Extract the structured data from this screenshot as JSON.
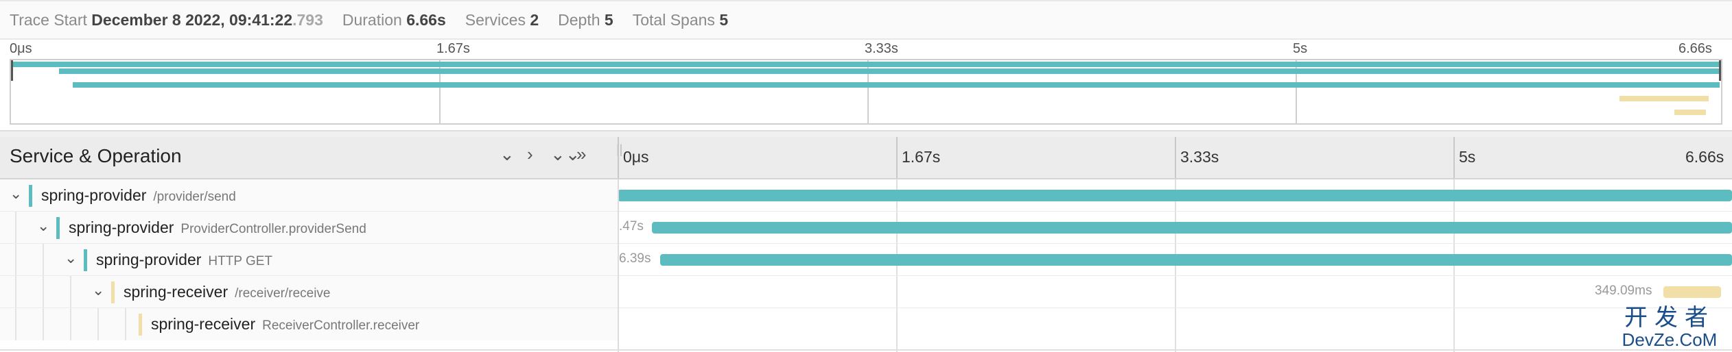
{
  "summary": {
    "trace_start_label": "Trace Start",
    "trace_start_value": "December 8 2022, 09:41:22",
    "trace_start_ms": ".793",
    "duration_label": "Duration",
    "duration_value": "6.66s",
    "services_label": "Services",
    "services_value": "2",
    "depth_label": "Depth",
    "depth_value": "5",
    "total_spans_label": "Total Spans",
    "total_spans_value": "5"
  },
  "minimap": {
    "ticks": [
      "0μs",
      "1.67s",
      "3.33s",
      "5s",
      "6.66s"
    ]
  },
  "header": {
    "title": "Service & Operation",
    "timeline_ticks": [
      "0μs",
      "1.67s",
      "3.33s",
      "5s",
      "6.66s"
    ]
  },
  "colors": {
    "provider": "#5dbcbf",
    "receiver": "#f2dfa7"
  },
  "icons": {
    "collapse_one": "chevron-down-icon",
    "expand_one": "chevron-right-icon",
    "collapse_all": "double-chevron-down-icon",
    "expand_all": "double-chevron-right-icon"
  },
  "spans": [
    {
      "service": "spring-provider",
      "operation": "/provider/send",
      "label": "",
      "depth": 0
    },
    {
      "service": "spring-provider",
      "operation": "ProviderController.providerSend",
      "label": ".47s",
      "depth": 1
    },
    {
      "service": "spring-provider",
      "operation": "HTTP GET",
      "label": "6.39s",
      "depth": 2
    },
    {
      "service": "spring-receiver",
      "operation": "/receiver/receive",
      "label": "349.09ms",
      "depth": 3
    },
    {
      "service": "spring-receiver",
      "operation": "ReceiverController.receiver",
      "label": "",
      "depth": 4
    }
  ],
  "watermark": {
    "cn": "开发者",
    "en": "DevZe.CoM"
  }
}
